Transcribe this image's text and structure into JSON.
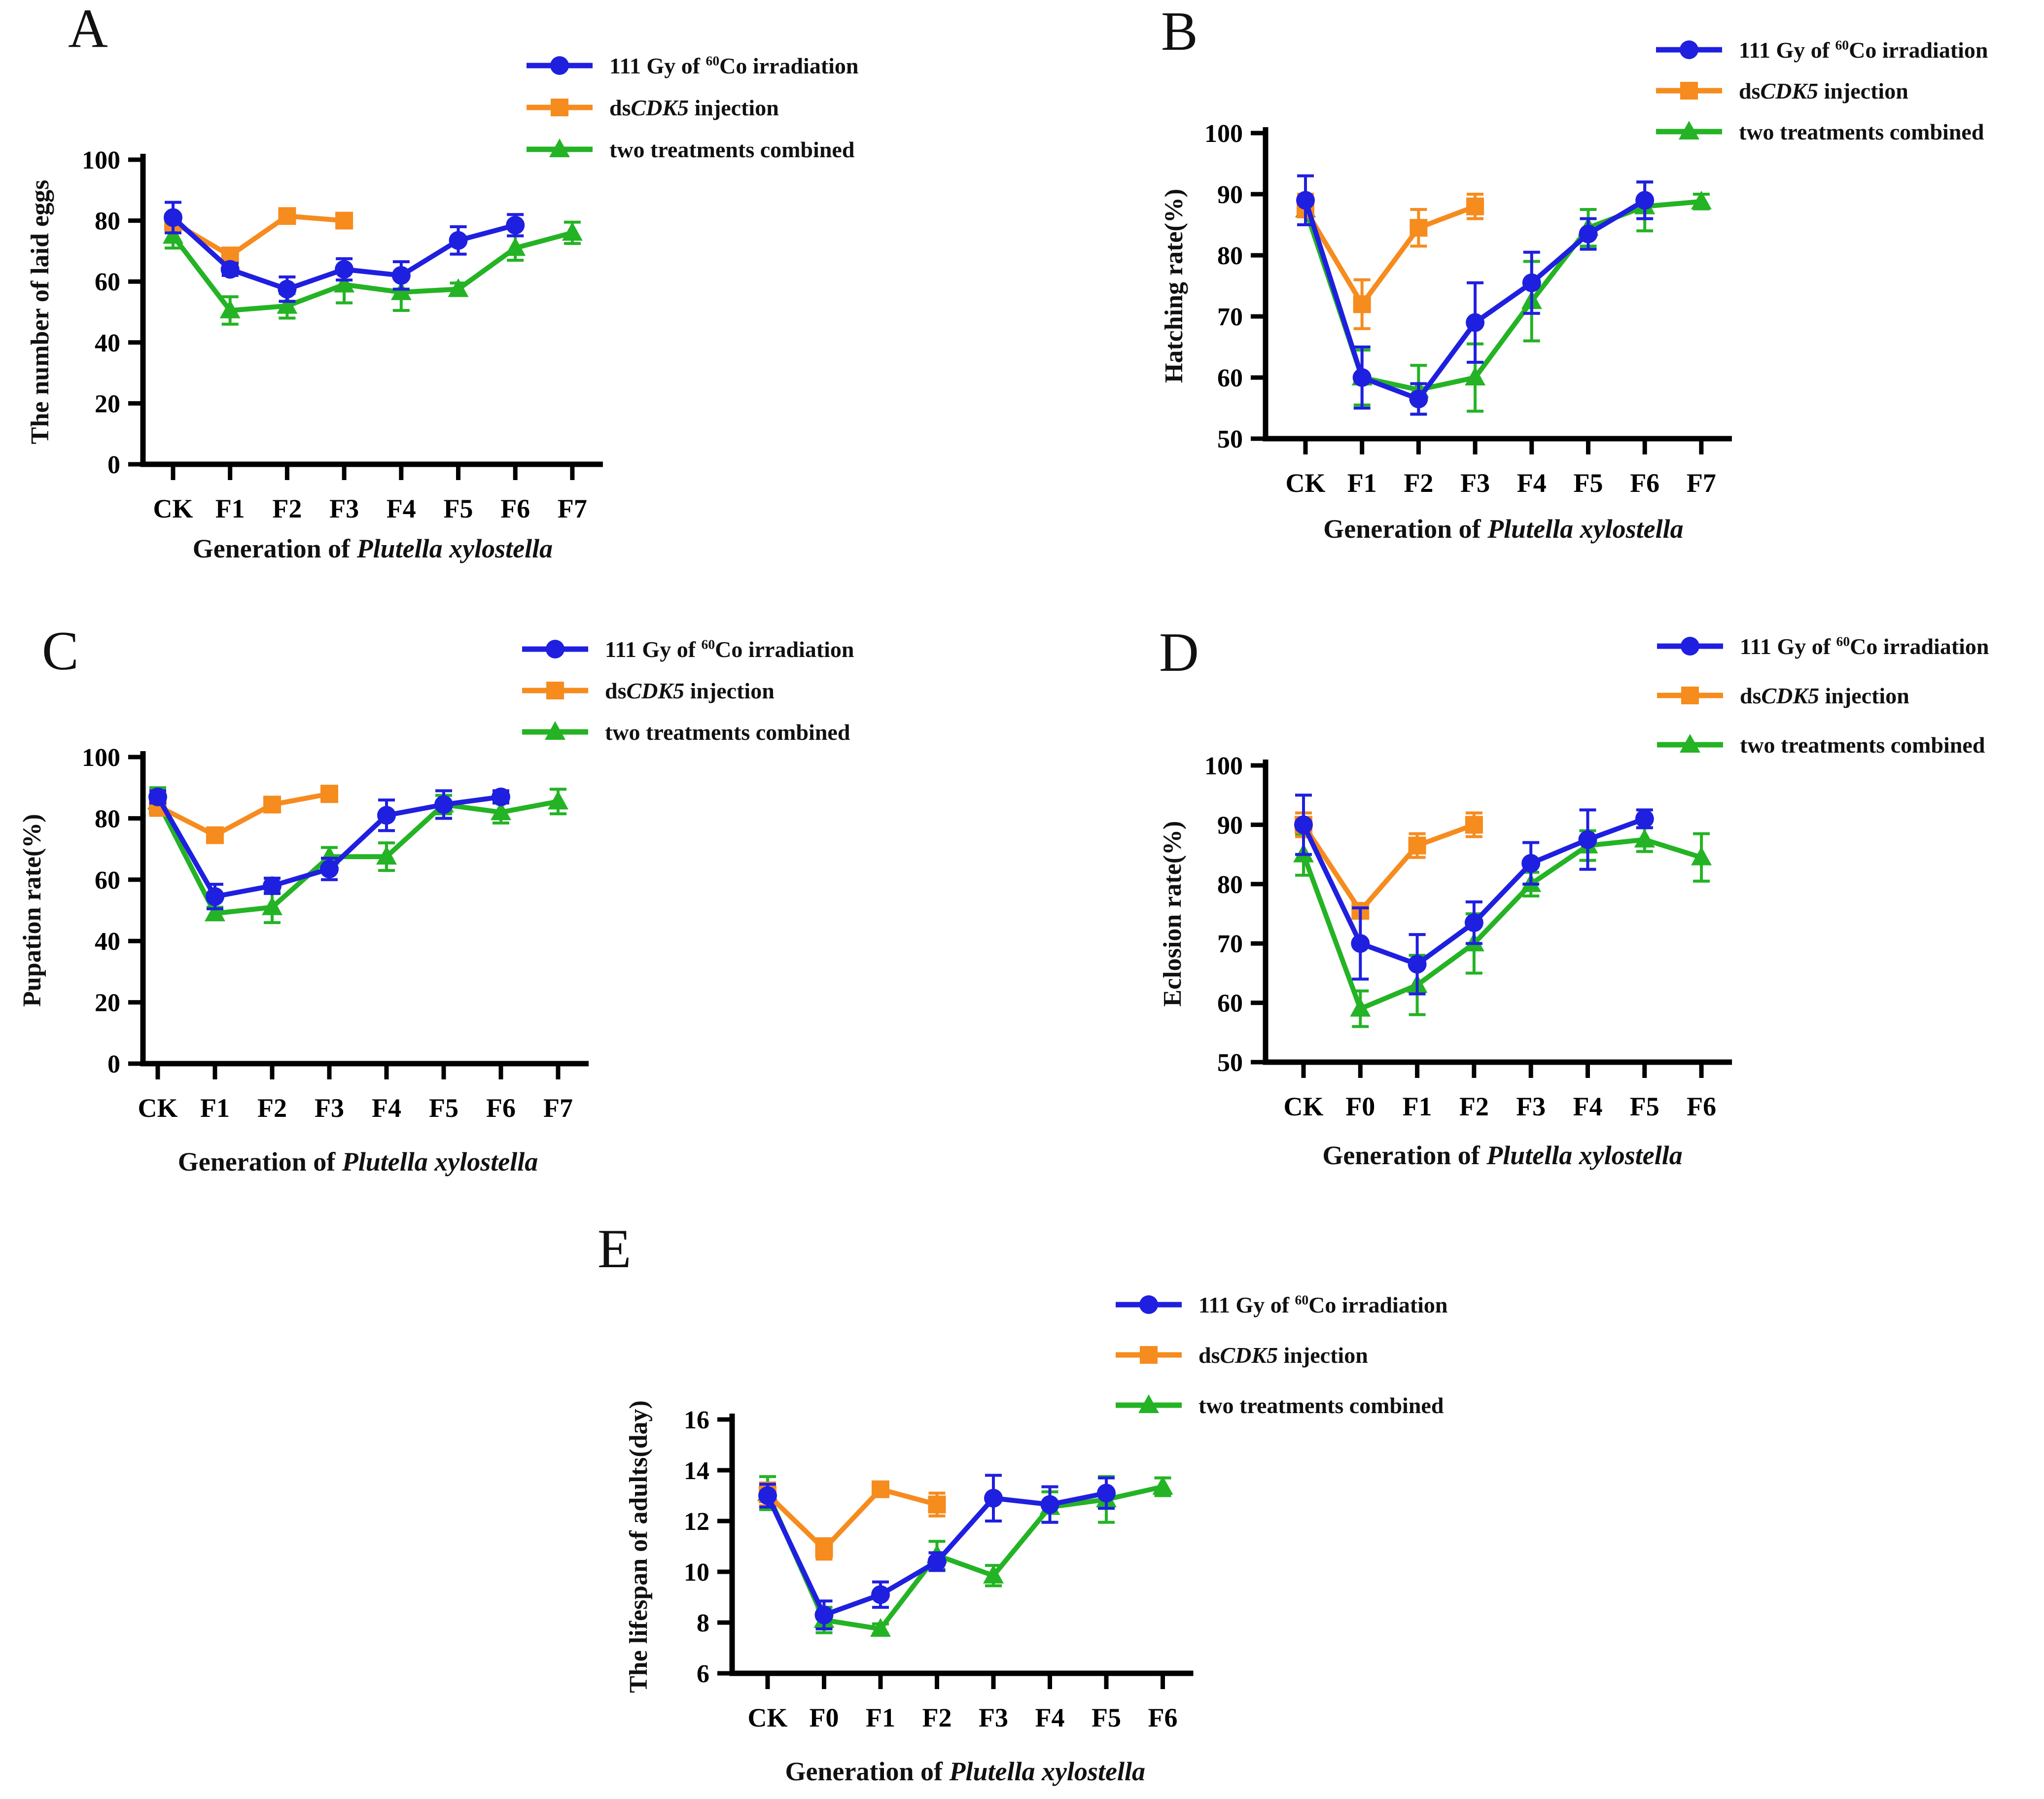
{
  "figure": {
    "xlabel_segments": [
      {
        "t": "Generation of "
      },
      {
        "t": "Plutella xylostella",
        "italic": true
      }
    ],
    "legend_entries": [
      {
        "marker": "circle",
        "color": "#1f1fe0",
        "segments": [
          {
            "t": "111 Gy of "
          },
          {
            "t": "60",
            "sup": true
          },
          {
            "t": "Co irradiation"
          }
        ]
      },
      {
        "marker": "square",
        "color": "#f68b1e",
        "segments": [
          {
            "t": "ds"
          },
          {
            "t": "CDK5",
            "italic": true
          },
          {
            "t": " injection"
          }
        ]
      },
      {
        "marker": "triangle",
        "color": "#24b324",
        "segments": [
          {
            "t": "two treatments combined"
          }
        ]
      }
    ],
    "colors": {
      "irradiation": "#1f1fe0",
      "injection": "#f68b1e",
      "combined": "#24b324"
    }
  },
  "chart_data": [
    {
      "panel_label": "A",
      "type": "line",
      "ylabel": "The number of laid eggs",
      "xlabel": "Generation of Plutella xylostella",
      "ylim": [
        0,
        100
      ],
      "yticks": [
        0,
        20,
        40,
        60,
        80,
        100
      ],
      "categories": [
        "CK",
        "F1",
        "F2",
        "F3",
        "F4",
        "F5",
        "F6",
        "F7"
      ],
      "legend_position": "top-right",
      "series": [
        {
          "name": "111 Gy of 60Co irradiation",
          "marker": "circle",
          "color": "#1f1fe0",
          "values": [
            81,
            64,
            57.5,
            64,
            62,
            73.5,
            78.5,
            null
          ],
          "errors": [
            5,
            2,
            4,
            3.5,
            4.5,
            4.5,
            3.5,
            null
          ]
        },
        {
          "name": "dsCDK5 injection",
          "marker": "square",
          "color": "#f68b1e",
          "values": [
            79.5,
            68.5,
            81.5,
            80,
            null,
            null,
            null,
            null
          ],
          "errors": [
            2.5,
            2.5,
            1.5,
            1.5,
            null,
            null,
            null,
            null
          ]
        },
        {
          "name": "two treatments combined",
          "marker": "triangle",
          "color": "#24b324",
          "values": [
            75,
            50.5,
            52,
            59,
            56.5,
            57.5,
            71,
            76
          ],
          "errors": [
            4,
            4.5,
            4,
            6,
            6,
            2,
            4,
            3.5
          ]
        }
      ]
    },
    {
      "panel_label": "B",
      "type": "line",
      "ylabel": "Hatching rate(%)",
      "xlabel": "Generation of Plutella xylostella",
      "ylim": [
        50,
        100
      ],
      "yticks": [
        50,
        60,
        70,
        80,
        90,
        100
      ],
      "categories": [
        "CK",
        "F1",
        "F2",
        "F3",
        "F4",
        "F5",
        "F6",
        "F7"
      ],
      "legend_position": "top-right",
      "series": [
        {
          "name": "111 Gy of 60Co irradiation",
          "marker": "circle",
          "color": "#1f1fe0",
          "values": [
            89,
            60,
            56.5,
            69,
            75.5,
            83.5,
            89,
            null
          ],
          "errors": [
            4,
            5,
            2.5,
            6.5,
            5,
            2.5,
            3,
            null
          ]
        },
        {
          "name": "dsCDK5 injection",
          "marker": "square",
          "color": "#f68b1e",
          "values": [
            87.5,
            72,
            84.5,
            88,
            null,
            null,
            null,
            null
          ],
          "errors": [
            2.5,
            4,
            3,
            2,
            null,
            null,
            null,
            null
          ]
        },
        {
          "name": "two treatments combined",
          "marker": "triangle",
          "color": "#24b324",
          "values": [
            87.5,
            60,
            58,
            60,
            72.5,
            84.5,
            88,
            88.8
          ],
          "errors": [
            2.5,
            4.5,
            4,
            5.5,
            6.5,
            3,
            4,
            1.2
          ]
        }
      ]
    },
    {
      "panel_label": "C",
      "type": "line",
      "ylabel": "Pupation rate(%)",
      "xlabel": "Generation of Plutella xylostella",
      "ylim": [
        0,
        100
      ],
      "yticks": [
        0,
        20,
        40,
        60,
        80,
        100
      ],
      "categories": [
        "CK",
        "F1",
        "F2",
        "F3",
        "F4",
        "F5",
        "F6",
        "F7"
      ],
      "legend_position": "top-right",
      "series": [
        {
          "name": "111 Gy of 60Co irradiation",
          "marker": "circle",
          "color": "#1f1fe0",
          "values": [
            87,
            54.5,
            58,
            63.5,
            81,
            84.5,
            87,
            null
          ],
          "errors": [
            2,
            4,
            2.5,
            3.5,
            5,
            4.5,
            2,
            null
          ]
        },
        {
          "name": "dsCDK5 injection",
          "marker": "square",
          "color": "#f68b1e",
          "values": [
            84,
            74.5,
            84.5,
            88,
            null,
            null,
            null,
            null
          ],
          "errors": [
            3,
            1.5,
            2,
            2.5,
            null,
            null,
            null,
            null
          ]
        },
        {
          "name": "two treatments combined",
          "marker": "triangle",
          "color": "#24b324",
          "values": [
            85.5,
            49,
            51,
            67.5,
            67.5,
            84.5,
            82,
            85.5
          ],
          "errors": [
            4.5,
            2,
            5,
            3,
            4.5,
            3,
            3.5,
            4
          ]
        }
      ]
    },
    {
      "panel_label": "D",
      "type": "line",
      "ylabel": "Eclosion rate(%)",
      "xlabel": "Generation of Plutella xylostella",
      "ylim": [
        50,
        100
      ],
      "yticks": [
        50,
        60,
        70,
        80,
        90,
        100
      ],
      "categories": [
        "CK",
        "F0",
        "F1",
        "F2",
        "F3",
        "F4",
        "F5",
        "F6"
      ],
      "legend_position": "top-right",
      "series": [
        {
          "name": "111 Gy of 60Co irradiation",
          "marker": "circle",
          "color": "#1f1fe0",
          "values": [
            90,
            70,
            66.5,
            73.5,
            83.5,
            87.5,
            91,
            null
          ],
          "errors": [
            5,
            6,
            5,
            3.5,
            3.5,
            5,
            1.5,
            null
          ]
        },
        {
          "name": "dsCDK5 injection",
          "marker": "square",
          "color": "#f68b1e",
          "values": [
            90,
            75.5,
            86.5,
            90,
            null,
            null,
            null,
            null
          ],
          "errors": [
            2,
            1,
            2,
            2,
            null,
            null,
            null,
            null
          ]
        },
        {
          "name": "two treatments combined",
          "marker": "triangle",
          "color": "#24b324",
          "values": [
            85,
            59,
            63,
            70,
            80,
            86.5,
            87.5,
            84.5
          ],
          "errors": [
            3.5,
            3,
            5,
            5,
            2,
            2.5,
            2,
            4
          ]
        }
      ]
    },
    {
      "panel_label": "E",
      "type": "line",
      "ylabel": "The lifespan of adults(day)",
      "xlabel": "Generation of Plutella xylostella",
      "ylim": [
        6,
        16
      ],
      "yticks": [
        6,
        8,
        10,
        12,
        14,
        16
      ],
      "categories": [
        "CK",
        "F0",
        "F1",
        "F2",
        "F3",
        "F4",
        "F5",
        "F6"
      ],
      "legend_position": "top-right",
      "series": [
        {
          "name": "111 Gy of 60Co irradiation",
          "marker": "circle",
          "color": "#1f1fe0",
          "values": [
            13,
            8.3,
            9.1,
            10.4,
            12.9,
            12.65,
            13.1,
            null
          ],
          "errors": [
            0.45,
            0.55,
            0.5,
            0.35,
            0.9,
            0.7,
            0.6,
            null
          ]
        },
        {
          "name": "dsCDK5 injection",
          "marker": "square",
          "color": "#f68b1e",
          "values": [
            13.05,
            10.9,
            13.25,
            12.65,
            null,
            null,
            null,
            null
          ],
          "errors": [
            0.45,
            0.4,
            0.25,
            0.45,
            null,
            null,
            null,
            null
          ]
        },
        {
          "name": "two treatments combined",
          "marker": "triangle",
          "color": "#24b324",
          "values": [
            13.1,
            8.1,
            7.75,
            10.65,
            9.85,
            12.55,
            12.85,
            13.35
          ],
          "errors": [
            0.65,
            0.5,
            0.2,
            0.55,
            0.4,
            0.6,
            0.9,
            0.35
          ]
        }
      ]
    }
  ]
}
